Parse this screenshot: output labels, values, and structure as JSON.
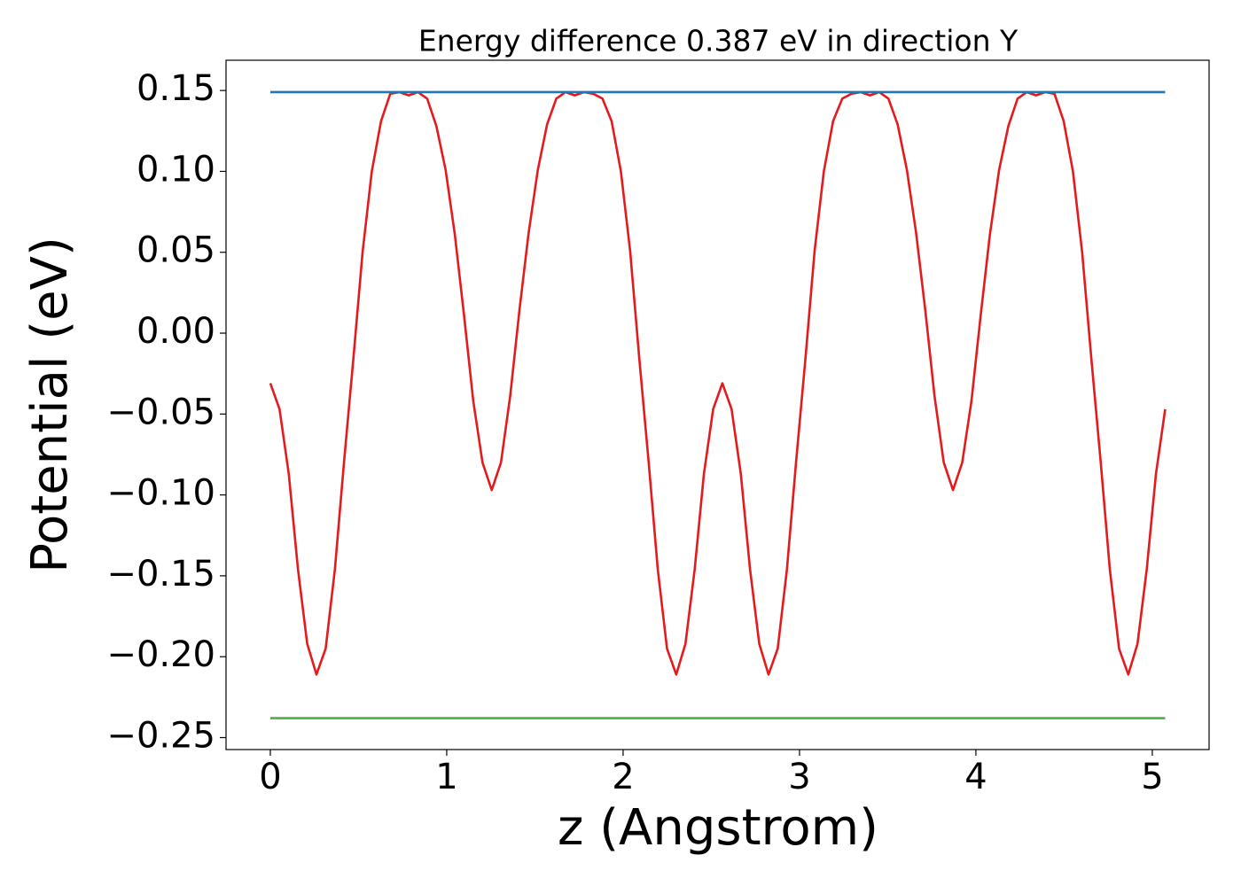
{
  "chart_data": {
    "type": "line",
    "title": "Energy difference 0.387 eV in direction Y",
    "xlabel": "z (Angstrom)",
    "ylabel": "Potential (eV)",
    "xlim": [
      -0.251,
      5.322
    ],
    "ylim": [
      -0.2574,
      0.1687
    ],
    "xticks": [
      0,
      1,
      2,
      3,
      4,
      5
    ],
    "yticks": [
      {
        "value": -0.25,
        "label": "−0.25"
      },
      {
        "value": -0.2,
        "label": "−0.20"
      },
      {
        "value": -0.15,
        "label": "−0.15"
      },
      {
        "value": -0.1,
        "label": "−0.10"
      },
      {
        "value": -0.05,
        "label": "−0.05"
      },
      {
        "value": 0,
        "label": "0.00"
      },
      0.05,
      {
        "value": 0.1,
        "label": "0.10"
      },
      0.15
    ],
    "grid": false,
    "series": [
      {
        "color": "#e41a1c",
        "x": [
          0,
          0.0523,
          0.1046,
          0.1569,
          0.2092,
          0.2615,
          0.3138,
          0.3661,
          0.4184,
          0.4707,
          0.523,
          0.5753,
          0.6276,
          0.6799,
          0.7322,
          0.7845,
          0.8368,
          0.8891,
          0.9414,
          0.9937,
          1.046,
          1.0983,
          1.1506,
          1.2029,
          1.2552,
          1.3075,
          1.3598,
          1.4121,
          1.4644,
          1.5167,
          1.569,
          1.6213,
          1.6736,
          1.7259,
          1.7782,
          1.8305,
          1.8828,
          1.9351,
          1.9874,
          2.0397,
          2.092,
          2.1443,
          2.1966,
          2.2489,
          2.3012,
          2.3535,
          2.4058,
          2.4581,
          2.5104,
          2.5627,
          2.615,
          2.6673,
          2.7196,
          2.7719,
          2.8242,
          2.8765,
          2.9288,
          2.9811,
          3.0334,
          3.0857,
          3.138,
          3.1903,
          3.2426,
          3.2949,
          3.3472,
          3.3995,
          3.4518,
          3.5041,
          3.5564,
          3.6087,
          3.661,
          3.7133,
          3.7656,
          3.8179,
          3.8702,
          3.9225,
          3.9748,
          4.0271,
          4.0794,
          4.1317,
          4.184,
          4.2363,
          4.2886,
          4.3409,
          4.3932,
          4.4455,
          4.4978,
          4.5501,
          4.6024,
          4.6547,
          4.707,
          4.7593,
          4.8116,
          4.8639,
          4.9162,
          4.9685,
          5.0208,
          5.0731
        ],
        "values": [
          -0.031,
          -0.047,
          -0.087,
          -0.146,
          -0.192,
          -0.211,
          -0.195,
          -0.146,
          -0.079,
          -0.016,
          0.05,
          0.1,
          0.131,
          0.148,
          0.149,
          0.147,
          0.149,
          0.145,
          0.128,
          0.101,
          0.061,
          0.011,
          -0.042,
          -0.08,
          -0.097,
          -0.08,
          -0.039,
          0.014,
          0.062,
          0.101,
          0.129,
          0.145,
          0.149,
          0.147,
          0.149,
          0.148,
          0.145,
          0.131,
          0.1,
          0.051,
          -0.016,
          -0.079,
          -0.146,
          -0.195,
          -0.211,
          -0.192,
          -0.146,
          -0.087,
          -0.047,
          -0.031,
          -0.047,
          -0.087,
          -0.146,
          -0.192,
          -0.211,
          -0.195,
          -0.146,
          -0.079,
          -0.016,
          0.051,
          0.1,
          0.131,
          0.145,
          0.148,
          0.149,
          0.147,
          0.149,
          0.145,
          0.129,
          0.101,
          0.062,
          0.014,
          -0.039,
          -0.08,
          -0.097,
          -0.08,
          -0.042,
          0.011,
          0.061,
          0.101,
          0.128,
          0.145,
          0.149,
          0.147,
          0.149,
          0.148,
          0.131,
          0.1,
          0.05,
          -0.016,
          -0.079,
          -0.146,
          -0.195,
          -0.211,
          -0.192,
          -0.146,
          -0.087,
          -0.047
        ]
      },
      {
        "color": "#1f77b4",
        "x": [
          0,
          5.0731
        ],
        "values": [
          0.149,
          0.149
        ]
      },
      {
        "color": "#4daf4a",
        "x": [
          0,
          5.0731
        ],
        "values": [
          -0.238,
          -0.238
        ]
      }
    ]
  }
}
